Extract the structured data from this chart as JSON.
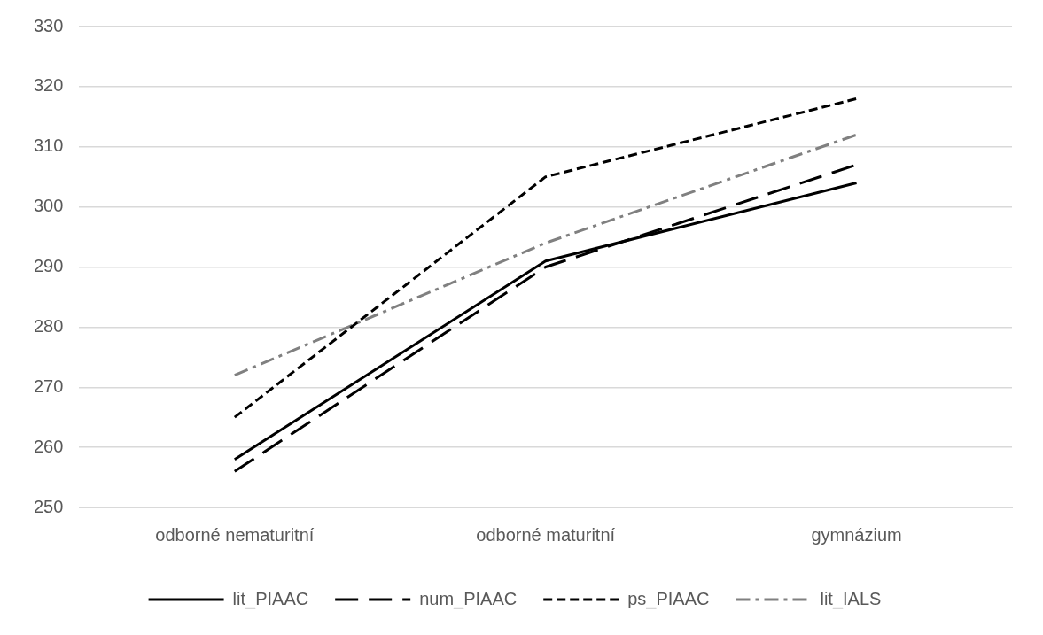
{
  "chart_data": {
    "type": "line",
    "categories": [
      "odborné nematuritní",
      "odborné maturitní",
      "gymnázium"
    ],
    "series": [
      {
        "name": "lit_PIAAC",
        "color": "#000000",
        "line_style": "solid",
        "values": [
          258,
          291,
          304
        ]
      },
      {
        "name": "num_PIAAC",
        "color": "#000000",
        "line_style": "dashed",
        "values": [
          256,
          290,
          307
        ]
      },
      {
        "name": "ps_PIAAC",
        "color": "#000000",
        "line_style": "dotted",
        "values": [
          265,
          305,
          318
        ]
      },
      {
        "name": "lit_IALS",
        "color": "#808080",
        "line_style": "dashdot",
        "values": [
          272,
          294,
          312
        ]
      }
    ],
    "ylim": [
      250,
      330
    ],
    "yticks": [
      250,
      260,
      270,
      280,
      290,
      300,
      310,
      320,
      330
    ],
    "grid": "y",
    "legend": "bottom",
    "marker": "none"
  }
}
